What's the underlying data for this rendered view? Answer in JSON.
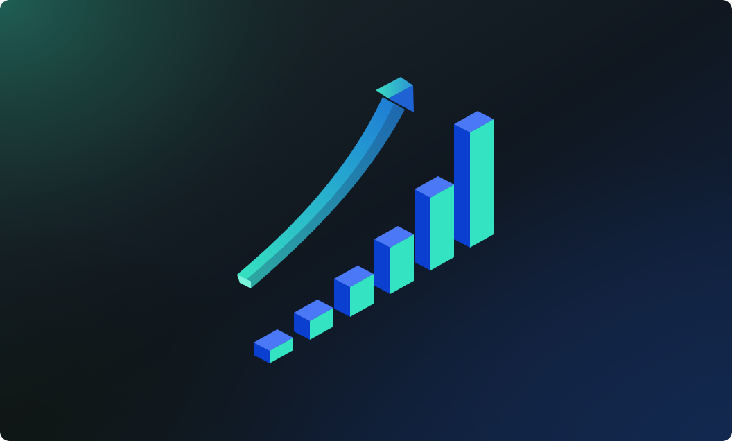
{
  "illustration": {
    "subject": "isometric-growth-bars-with-upward-arrow",
    "bar_count": 6,
    "relative_bar_heights": [
      0.08,
      0.15,
      0.27,
      0.47,
      0.7,
      1.0
    ],
    "icon": "trend-up-arrow-icon"
  },
  "colors": {
    "bg_dark": "#0f1621",
    "bg_green_glow": "#1e5a50",
    "bg_navy": "#11264a",
    "bar_top": "#4a78f7",
    "bar_left": "#0a3fd0",
    "bar_right": "#33e3c1",
    "arrow_start": "#36e0c0",
    "arrow_end": "#1e78d8"
  }
}
